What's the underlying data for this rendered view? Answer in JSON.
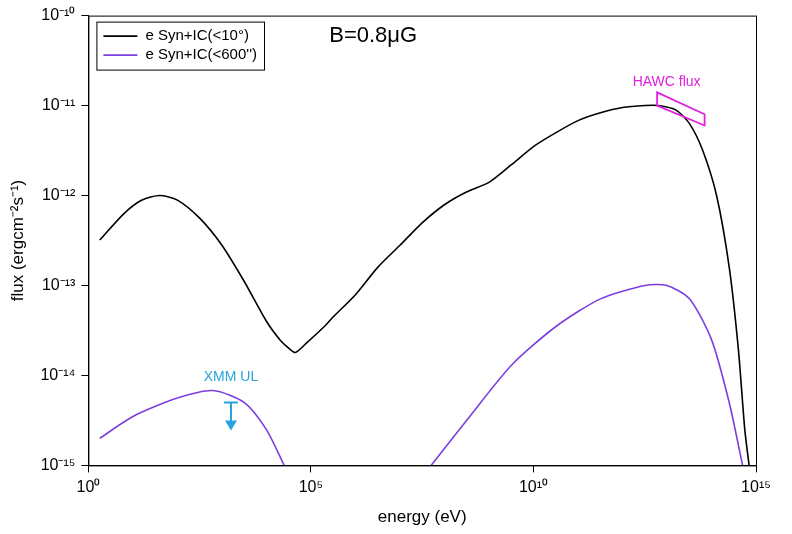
{
  "chart_data": {
    "type": "line",
    "log": true,
    "grid": false,
    "legend": "top-left",
    "x_label": "energy (eV)",
    "y_label": "flux (ergcm⁻²s⁻¹)",
    "xlim": [
      1,
      1000000000000000.0
    ],
    "ylim": [
      1e-15,
      1e-10
    ],
    "xticks": [
      {
        "value": 1,
        "label": "10⁰"
      },
      {
        "value": 100000.0,
        "label": "10⁵"
      },
      {
        "value": 10000000000.0,
        "label": "10¹⁰"
      },
      {
        "value": 1000000000000000.0,
        "label": "10¹⁵"
      }
    ],
    "yticks": [
      {
        "value": 1e-15,
        "label": "10⁻¹⁵"
      },
      {
        "value": 1e-14,
        "label": "10⁻¹⁴"
      },
      {
        "value": 1e-13,
        "label": "10⁻¹³"
      },
      {
        "value": 1e-12,
        "label": "10⁻¹²"
      },
      {
        "value": 1e-11,
        "label": "10⁻¹¹"
      },
      {
        "value": 1e-10,
        "label": "10⁻¹⁰"
      }
    ],
    "series": [
      {
        "name": "e Syn+IC(<10°)",
        "color": "#000000",
        "x": [
          1.8,
          6.3,
          16,
          40,
          100,
          316,
          1000,
          3200,
          10000,
          20000,
          32000,
          45000,
          80000,
          200000,
          320000,
          1000000.0,
          3200000.0,
          10000000.0,
          32000000.0,
          100000000.0,
          320000000.0,
          1000000000.0,
          3200000000.0,
          10000000000.0,
          32000000000.0,
          100000000000.0,
          320000000000.0,
          1000000000000.0,
          3200000000000.0,
          6300000000000.0,
          16000000000000.0,
          32000000000000.0,
          63000000000000.0,
          130000000000000.0,
          250000000000000.0,
          400000000000000.0,
          560000000000000.0,
          700000000000000.0
        ],
        "values": [
          3.2e-13,
          6.3e-13,
          8.9e-13,
          1e-12,
          8.9e-13,
          5.6e-13,
          2.8e-13,
          1.1e-13,
          4e-14,
          2.5e-14,
          2e-14,
          1.8e-14,
          2.3e-14,
          3.5e-14,
          4.5e-14,
          7.9e-14,
          1.6e-13,
          2.8e-13,
          5e-13,
          7.9e-13,
          1.1e-12,
          1.4e-12,
          2.2e-12,
          3.5e-12,
          5e-12,
          6.8e-12,
          8.3e-12,
          9.5e-12,
          1e-11,
          1e-11,
          8.9e-12,
          6.3e-12,
          3.2e-12,
          1e-12,
          1.6e-13,
          2e-14,
          2.5e-15,
          1e-15
        ]
      },
      {
        "name": "e Syn+IC(<600'')",
        "color": "#7b3fe0",
        "x": [
          1.8,
          10,
          100,
          630,
          3200,
          10000,
          25000,
          50000,
          50000000.0,
          320000000.0,
          3200000000.0,
          32000000000.0,
          320000000000.0,
          3200000000000.0,
          10000000000000.0,
          32000000000000.0,
          100000000000000.0,
          250000000000000.0,
          500000000000000.0
        ],
        "values": [
          2e-15,
          3.5e-15,
          5.6e-15,
          6.8e-15,
          5e-15,
          2.5e-15,
          1e-15,
          null,
          1e-15,
          3.2e-15,
          1.3e-14,
          3.5e-14,
          7.1e-14,
          1e-13,
          1e-13,
          7.1e-14,
          2.5e-14,
          5e-15,
          1e-15
        ]
      }
    ],
    "annotations": [
      {
        "text": "B=0.8μG",
        "x": 2500000.0,
        "y": 6e-11
      }
    ],
    "upper_limits": [
      {
        "label": "XMM UL",
        "x": 1600,
        "y": 5e-15,
        "color": "#29a3e0"
      }
    ],
    "flux_bands": [
      {
        "label": "HAWC flux",
        "x": [
          6000000000000.0,
          70000000000000.0
        ],
        "upper": [
          1.4e-11,
          8e-12
        ],
        "lower": [
          1e-11,
          6e-12
        ],
        "color": "#e020e0"
      }
    ]
  }
}
